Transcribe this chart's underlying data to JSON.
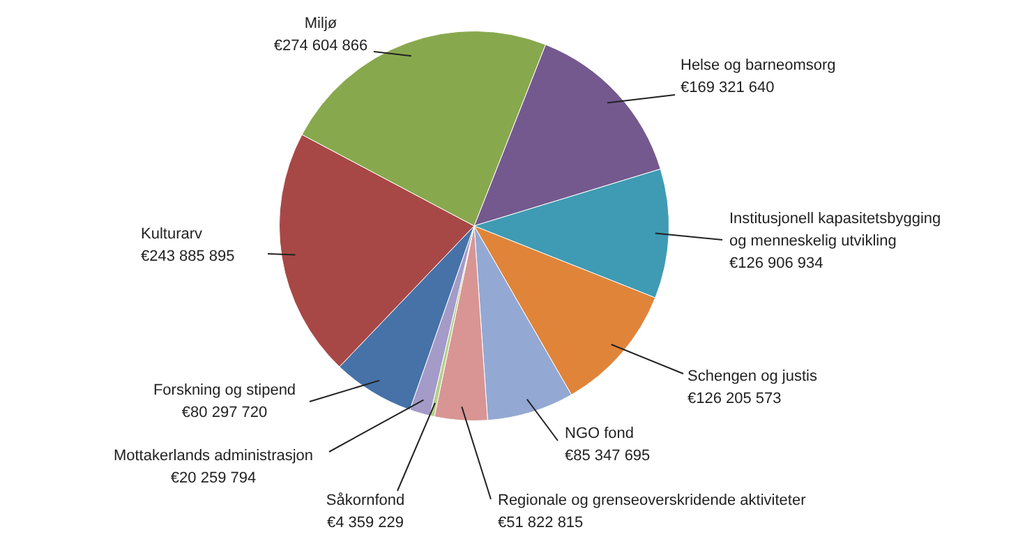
{
  "chart_data": {
    "type": "pie",
    "categories": [
      "Helse og barneomsorg",
      "Institusjonell kapasitetsbygging\nog menneskelig utvikling",
      "Schengen og justis",
      "NGO fond",
      "Regionale og grenseoverskridende aktiviteter",
      "Såkornfond",
      "Mottakerlands administrasjon",
      "Forskning og stipend",
      "Kulturarv",
      "Miljø"
    ],
    "values": [
      169321640,
      126906934,
      126205573,
      85347695,
      51822815,
      4359229,
      20259794,
      80297720,
      243885895,
      274604866
    ],
    "value_labels": [
      "€169 321 640",
      "€126 906 934",
      "€126 205 573",
      "€85 347 695",
      "€51 822 815",
      "€4 359 229",
      "€20 259 794",
      "€80 297 720",
      "€243 885 895",
      "€274 604 866"
    ],
    "colors": [
      "#74598f",
      "#3e9bb3",
      "#e0843a",
      "#93a9d3",
      "#d89594",
      "#b7cf8c",
      "#a49bc8",
      "#4672a8",
      "#a84846",
      "#88a84e"
    ],
    "legend": false
  }
}
